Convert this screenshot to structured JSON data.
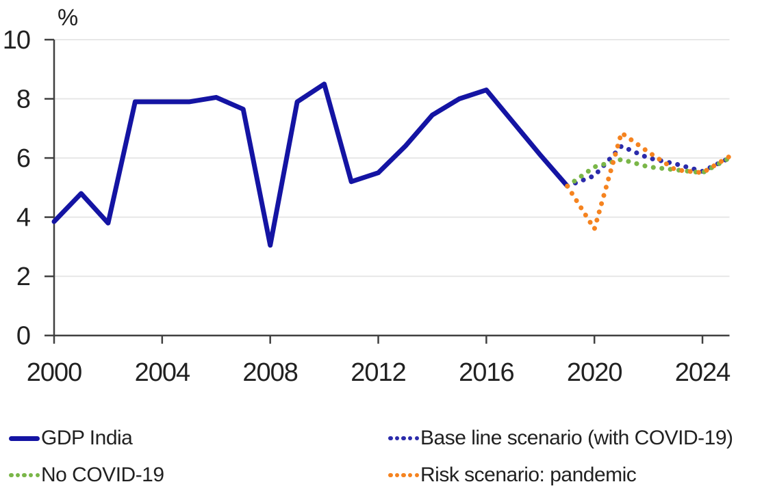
{
  "chart_data": {
    "type": "line",
    "title": "",
    "ylabel": "%",
    "xlabel": "",
    "xlim": [
      2000,
      2025
    ],
    "ylim": [
      0,
      10
    ],
    "x_ticks": [
      2000,
      2004,
      2008,
      2012,
      2016,
      2020,
      2024
    ],
    "y_ticks": [
      0,
      2,
      4,
      6,
      8,
      10
    ],
    "grid": "horizontal",
    "series": [
      {
        "name": "GDP India",
        "style": "solid",
        "color": "#1414A3",
        "x": [
          2000,
          2001,
          2002,
          2003,
          2004,
          2005,
          2006,
          2007,
          2008,
          2009,
          2010,
          2011,
          2012,
          2013,
          2014,
          2015,
          2016,
          2017,
          2018,
          2019
        ],
        "values": [
          3.85,
          4.8,
          3.8,
          7.9,
          7.9,
          7.9,
          8.05,
          7.65,
          3.05,
          7.9,
          8.5,
          5.2,
          5.5,
          6.4,
          7.45,
          8.0,
          8.3,
          7.2,
          6.1,
          5.05
        ]
      },
      {
        "name": "Base line scenario (with COVID-19)",
        "style": "dotted",
        "color": "#2B2BAB",
        "x": [
          2019,
          2020,
          2021,
          2022,
          2023,
          2024,
          2025
        ],
        "values": [
          5.05,
          5.4,
          6.4,
          6.0,
          5.8,
          5.55,
          6.0
        ]
      },
      {
        "name": "No COVID-19",
        "style": "dotted",
        "color": "#7AB648",
        "x": [
          2019,
          2020,
          2021,
          2022,
          2023,
          2024,
          2025
        ],
        "values": [
          5.05,
          5.7,
          5.95,
          5.7,
          5.6,
          5.5,
          6.0
        ]
      },
      {
        "name": "Risk scenario: pandemic",
        "style": "dotted",
        "color": "#F5831F",
        "x": [
          2019,
          2020,
          2021,
          2022,
          2023,
          2024,
          2025
        ],
        "values": [
          5.05,
          3.6,
          6.85,
          6.2,
          5.6,
          5.5,
          6.05
        ]
      }
    ],
    "legend": {
      "position": "bottom",
      "columns": 2,
      "items": [
        {
          "label": "GDP India",
          "style": "solid",
          "color": "#1414A3"
        },
        {
          "label": "Base line scenario (with COVID-19)",
          "style": "dotted",
          "color": "#2B2BAB"
        },
        {
          "label": "No COVID-19",
          "style": "dotted",
          "color": "#7AB648"
        },
        {
          "label": "Risk scenario: pandemic",
          "style": "dotted",
          "color": "#F5831F"
        }
      ]
    }
  },
  "colors": {
    "axis": "#3F3F3F",
    "gridline": "#E7E7E7",
    "text": "#212121",
    "background": "#FFFFFF"
  }
}
